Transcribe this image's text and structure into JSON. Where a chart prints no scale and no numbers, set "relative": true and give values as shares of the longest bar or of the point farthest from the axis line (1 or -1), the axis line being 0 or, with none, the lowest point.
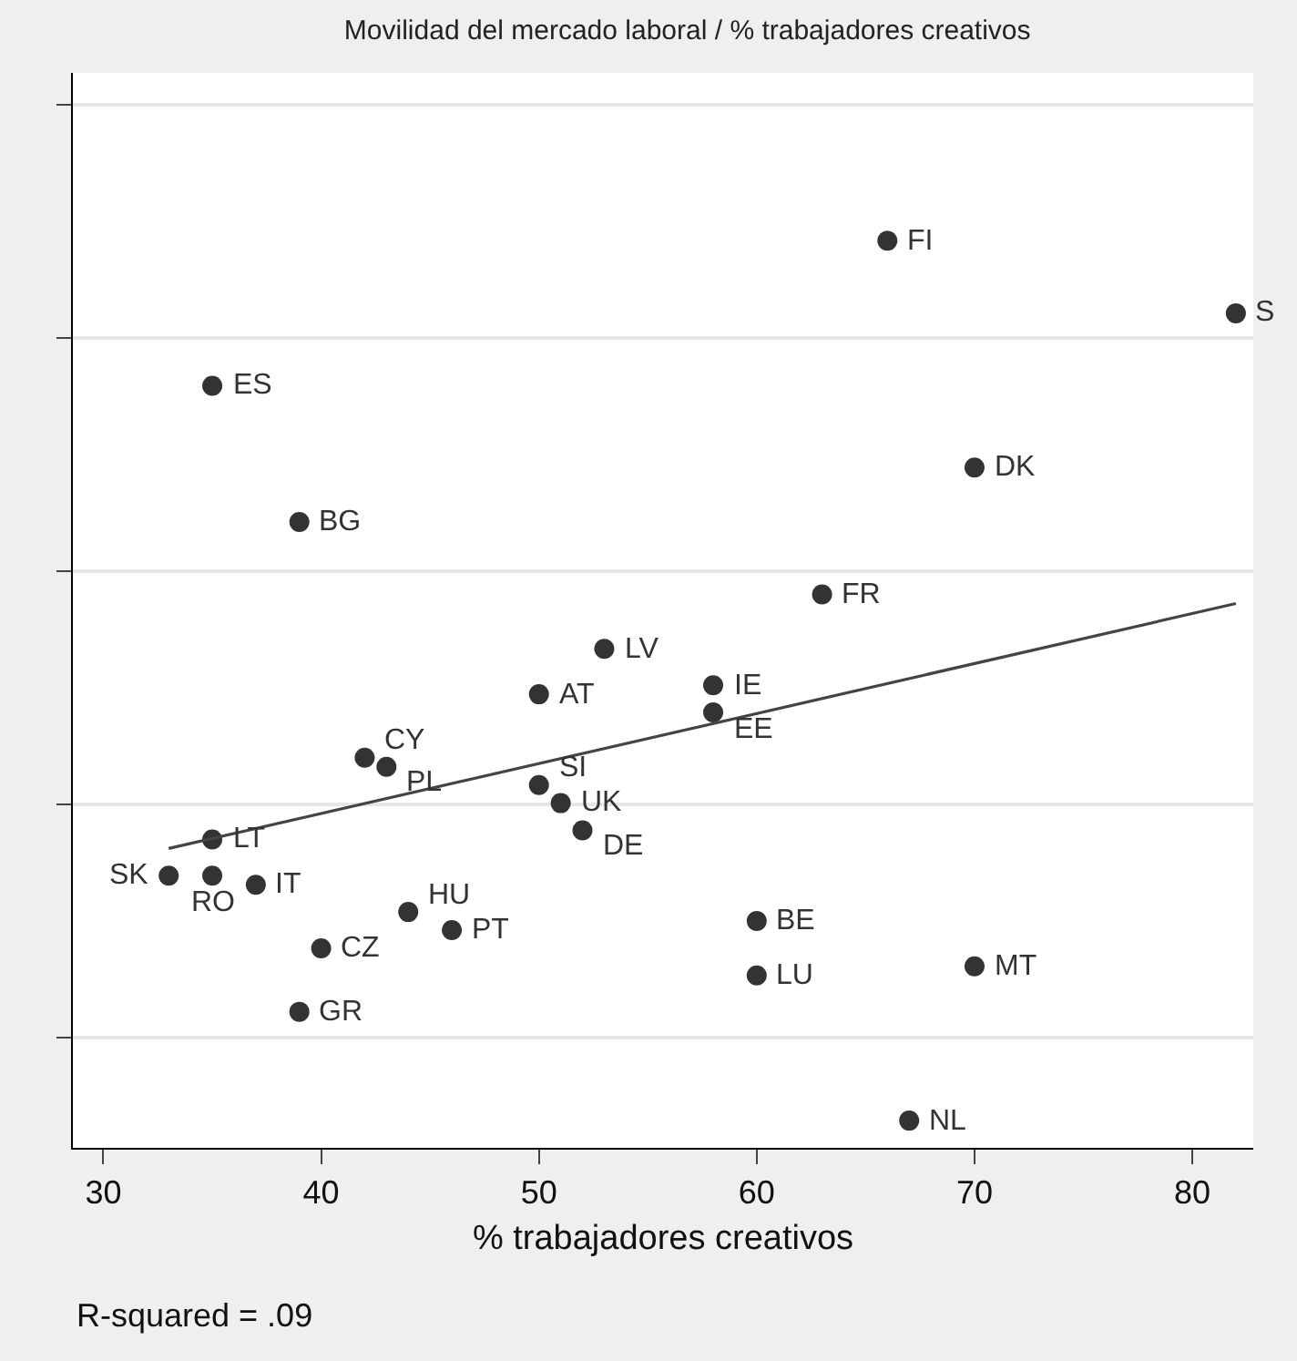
{
  "chart_data": {
    "type": "scatter",
    "title": "Movilidad del mercado laboral / % trabajadores creativos",
    "xlabel": "% trabajadores creativos",
    "relative": true,
    "xlim": [
      28.6,
      82.8
    ],
    "xticks": [
      30,
      40,
      50,
      60,
      70,
      80
    ],
    "grid": "y",
    "series": [
      {
        "marker": "circle",
        "color": "#333333",
        "x": [
          66,
          82,
          35,
          70,
          39,
          63,
          53,
          50,
          58,
          58,
          42,
          43,
          50,
          51,
          52,
          35,
          33,
          35,
          37,
          44,
          46,
          60,
          40,
          70,
          60,
          39,
          67
        ],
        "values": [
          1.0,
          0.92,
          0.84,
          0.75,
          0.69,
          0.61,
          0.55,
          0.5,
          0.51,
          0.48,
          0.43,
          0.42,
          0.4,
          0.38,
          0.35,
          0.34,
          0.3,
          0.3,
          0.29,
          0.26,
          0.24,
          0.25,
          0.22,
          0.2,
          0.19,
          0.15,
          0.03
        ]
      },
      {
        "type": "line",
        "color": "#444444",
        "line_style": "solid",
        "x": [
          33,
          82
        ],
        "values": [
          0.33,
          0.6
        ]
      }
    ],
    "annotations": [
      {
        "text": "FI",
        "x": 66,
        "y": 1.0
      },
      {
        "text": "S",
        "x": 82,
        "y": 0.92
      },
      {
        "text": "ES",
        "x": 35,
        "y": 0.84
      },
      {
        "text": "DK",
        "x": 70,
        "y": 0.75
      },
      {
        "text": "BG",
        "x": 39,
        "y": 0.69
      },
      {
        "text": "FR",
        "x": 63,
        "y": 0.61
      },
      {
        "text": "LV",
        "x": 53,
        "y": 0.55
      },
      {
        "text": "AT",
        "x": 50,
        "y": 0.5
      },
      {
        "text": "IE",
        "x": 58,
        "y": 0.51
      },
      {
        "text": "EE",
        "x": 58,
        "y": 0.48
      },
      {
        "text": "CY",
        "x": 42,
        "y": 0.43
      },
      {
        "text": "PL",
        "x": 43,
        "y": 0.42
      },
      {
        "text": "SI",
        "x": 50,
        "y": 0.4
      },
      {
        "text": "UK",
        "x": 51,
        "y": 0.38
      },
      {
        "text": "DE",
        "x": 52,
        "y": 0.35
      },
      {
        "text": "LT",
        "x": 35,
        "y": 0.34
      },
      {
        "text": "SK",
        "x": 33,
        "y": 0.3
      },
      {
        "text": "RO",
        "x": 35,
        "y": 0.3
      },
      {
        "text": "IT",
        "x": 37,
        "y": 0.29
      },
      {
        "text": "HU",
        "x": 44,
        "y": 0.26
      },
      {
        "text": "PT",
        "x": 46,
        "y": 0.24
      },
      {
        "text": "BE",
        "x": 60,
        "y": 0.25
      },
      {
        "text": "CZ",
        "x": 40,
        "y": 0.22
      },
      {
        "text": "MT",
        "x": 70,
        "y": 0.2
      },
      {
        "text": "LU",
        "x": 60,
        "y": 0.19
      },
      {
        "text": "GR",
        "x": 39,
        "y": 0.15
      },
      {
        "text": "NL",
        "x": 67,
        "y": 0.03
      },
      "R-squared = .09"
    ]
  }
}
